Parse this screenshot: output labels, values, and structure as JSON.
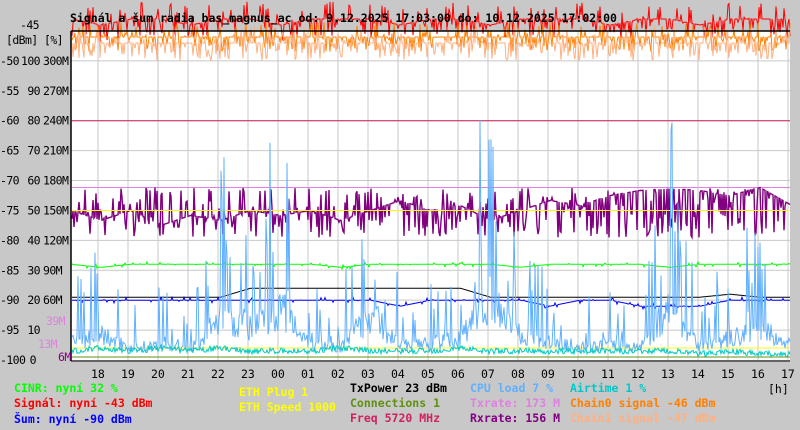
{
  "chart_data": {
    "type": "line",
    "title": "Signál a šum radia bas_magnus_ac od: 9.12.2025 17:03:00 do: 10.12.2025 17:02:00",
    "y_axes": {
      "dbm": {
        "label": "[dBm]",
        "range": [
          -100,
          -45
        ],
        "ticks": [
          "-45",
          "-50",
          "-55",
          "-60",
          "-65",
          "-70",
          "-75",
          "-80",
          "-85",
          "-90",
          "-95",
          "-100"
        ]
      },
      "percent": {
        "label": "[%]",
        "range": [
          0,
          110
        ],
        "ticks": [
          "100",
          "90",
          "80",
          "70",
          "60",
          "50",
          "40",
          "30",
          "20",
          "10",
          "0"
        ]
      },
      "rate": {
        "range": [
          0,
          330
        ],
        "ticks": [
          "300M",
          "270M",
          "240M",
          "210M",
          "180M",
          "150M",
          "120M",
          "90M",
          "60M"
        ],
        "extra_ticks": [
          {
            "label": "39M",
            "color": "#e080e0"
          },
          {
            "label": "13M",
            "color": "#e080e0"
          },
          {
            "label": "6M",
            "color": "#800080"
          }
        ]
      }
    },
    "x_axis": {
      "unit": "[h]",
      "ticks": [
        "18",
        "19",
        "20",
        "21",
        "22",
        "23",
        "00",
        "01",
        "02",
        "03",
        "04",
        "05",
        "06",
        "07",
        "08",
        "09",
        "10",
        "11",
        "12",
        "13",
        "14",
        "15",
        "16",
        "17"
      ]
    },
    "grid": true,
    "series": [
      {
        "key": "signal",
        "axis": "dbm",
        "color": "#ff0000",
        "values": [
          -43,
          -44,
          -43,
          -43,
          -44,
          -43,
          -43,
          -44,
          -43,
          -43,
          -43,
          -44,
          -43,
          -43,
          -44,
          -43,
          -43,
          -43,
          -44,
          -43,
          -43,
          -44,
          -43,
          -43,
          -43
        ]
      },
      {
        "key": "chain0",
        "axis": "dbm",
        "color": "#ff8000",
        "values": [
          -46,
          -46,
          -46,
          -46,
          -46,
          -46,
          -46,
          -46,
          -46,
          -46,
          -46,
          -46,
          -46,
          -46,
          -46,
          -46,
          -46,
          -46,
          -46,
          -46,
          -46,
          -46,
          -46,
          -46,
          -46
        ]
      },
      {
        "key": "chain1",
        "axis": "dbm",
        "color": "#ffb080",
        "values": [
          -47,
          -47,
          -47,
          -47,
          -47,
          -47,
          -47,
          -47,
          -47,
          -47,
          -47,
          -47,
          -47,
          -47,
          -47,
          -47,
          -47,
          -47,
          -47,
          -47,
          -47,
          -47,
          -47,
          -47,
          -47
        ]
      },
      {
        "key": "freq",
        "axis": "dbm",
        "color": "#d02060",
        "values": [
          -60,
          -60,
          -60,
          -60,
          -60,
          -60,
          -60,
          -60,
          -60,
          -60,
          -60,
          -60,
          -60,
          -60,
          -60,
          -60,
          -60,
          -60,
          -60,
          -60,
          -60,
          -60,
          -60,
          -60,
          -60
        ]
      },
      {
        "key": "txrate",
        "axis": "rate",
        "color": "#e080e0",
        "values": [
          173,
          173,
          173,
          173,
          173,
          173,
          173,
          173,
          173,
          173,
          173,
          173,
          173,
          173,
          173,
          173,
          173,
          173,
          173,
          173,
          173,
          173,
          173,
          173,
          173
        ]
      },
      {
        "key": "rxrate",
        "axis": "rate",
        "color": "#800080",
        "values": [
          150,
          140,
          150,
          135,
          145,
          140,
          150,
          145,
          150,
          140,
          150,
          160,
          150,
          155,
          140,
          150,
          160,
          155,
          165,
          170,
          172,
          170,
          165,
          173,
          156
        ]
      },
      {
        "key": "eth_speed",
        "axis": "percent",
        "color": "#ffff00",
        "values": [
          50,
          50,
          50,
          50,
          50,
          50,
          50,
          50,
          50,
          50,
          50,
          50,
          50,
          50,
          50,
          50,
          50,
          50,
          50,
          50,
          50,
          50,
          50,
          50,
          50
        ]
      },
      {
        "key": "eth_plug",
        "axis": "percent",
        "color": "#ffff00",
        "values": [
          4,
          4,
          4,
          4,
          4,
          4,
          4,
          4,
          4,
          4,
          4,
          4,
          4,
          4,
          4,
          4,
          4,
          4,
          4,
          4,
          4,
          4,
          4,
          4,
          4
        ]
      },
      {
        "key": "cinr",
        "axis": "percent",
        "color": "#00ff00",
        "values": [
          32,
          31,
          32,
          32,
          32,
          32,
          32,
          32,
          32,
          31,
          32,
          32,
          32,
          32,
          32,
          31,
          32,
          32,
          32,
          32,
          31,
          32,
          32,
          32,
          32
        ]
      },
      {
        "key": "txpower",
        "axis": "percent",
        "color": "#000000",
        "values": [
          21,
          21,
          21,
          21,
          21,
          21,
          24,
          24,
          24,
          24,
          24,
          24,
          24,
          24,
          21,
          21,
          21,
          21,
          21,
          21,
          21,
          21,
          22,
          21,
          21
        ]
      },
      {
        "key": "noise",
        "axis": "dbm",
        "color": "#0000ff",
        "values": [
          -90,
          -90,
          -90,
          -90,
          -90,
          -90,
          -90,
          -90,
          -90,
          -90,
          -90,
          -91,
          -90,
          -90,
          -90,
          -90,
          -91,
          -90,
          -90,
          -91,
          -91,
          -91,
          -90,
          -90,
          -90
        ]
      },
      {
        "key": "cpu",
        "axis": "percent",
        "color": "#60b0ff",
        "values": [
          8,
          12,
          6,
          7,
          5,
          20,
          15,
          25,
          8,
          6,
          22,
          7,
          8,
          10,
          30,
          12,
          8,
          6,
          7,
          6,
          25,
          7,
          10,
          15,
          7
        ]
      },
      {
        "key": "airtime",
        "axis": "percent",
        "color": "#00c8c8",
        "values": [
          2,
          3,
          2,
          3,
          2,
          3,
          2,
          2,
          2,
          3,
          2,
          2,
          2,
          3,
          2,
          2,
          2,
          2,
          2,
          2,
          2,
          1,
          2,
          1,
          1
        ]
      },
      {
        "key": "connections",
        "axis": "percent",
        "color": "#609010",
        "values": [
          1,
          1,
          1,
          1,
          1,
          1,
          1,
          1,
          1,
          1,
          1,
          1,
          1,
          1,
          1,
          1,
          1,
          1,
          1,
          1,
          1,
          1,
          1,
          1,
          1
        ]
      }
    ]
  },
  "legend": {
    "cinr": "CINR: nyní 32 %",
    "signal": "Signál: nyní -43 dBm",
    "noise": "Šum: nyní -90 dBm",
    "eth_plug": "ETH Plug 1",
    "eth_speed": "ETH Speed 1000",
    "txpower": "TxPower 23 dBm",
    "connections": "Connections 1",
    "freq": "Freq 5720 MHz",
    "cpu": "CPU load 7 %",
    "txrate": "Txrate: 173 M",
    "rxrate": "Rxrate: 156 M",
    "airtime": "Airtime 1 %",
    "chain0": "Chain0 signal -46 dBm",
    "chain1": "Chain1 signal -47 dBm"
  },
  "colors": {
    "cinr": "#00ff00",
    "signal": "#ff0000",
    "noise": "#0000ff",
    "eth": "#ffff00",
    "txpower": "#000000",
    "connections": "#609010",
    "freq": "#d02060",
    "cpu": "#60b0ff",
    "txrate": "#e080e0",
    "rxrate": "#800080",
    "airtime": "#00c8c8",
    "chain0": "#ff8000",
    "chain1": "#ffb080"
  }
}
